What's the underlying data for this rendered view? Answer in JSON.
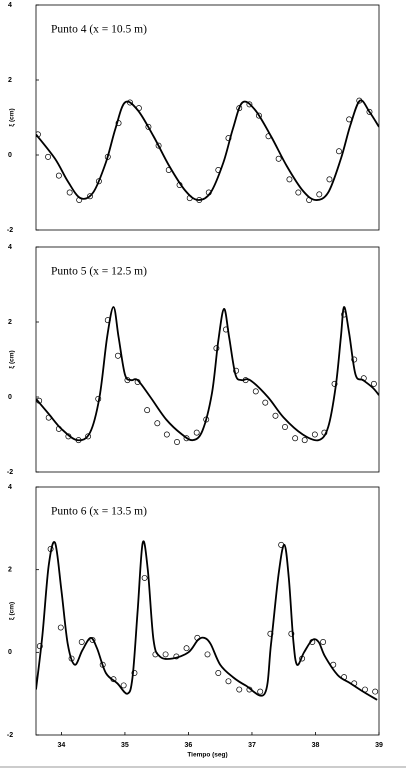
{
  "chart_data": [
    {
      "type": "line",
      "title": "Punto 4 (x = 10.5 m)",
      "ylabel": "ξ (cm)",
      "xlim": [
        33.6,
        39
      ],
      "ylim": [
        -2,
        4
      ],
      "yticks": [
        -2,
        0,
        2,
        4
      ],
      "series": [
        {
          "type": "line",
          "color": "#000000",
          "x": [
            33.6,
            33.9,
            34.1,
            34.3,
            34.5,
            34.7,
            34.85,
            35.0,
            35.2,
            35.45,
            35.7,
            35.95,
            36.15,
            36.35,
            36.55,
            36.7,
            36.85,
            37.05,
            37.3,
            37.55,
            37.8,
            38.0,
            38.2,
            38.4,
            38.55,
            38.7,
            38.85,
            39.0
          ],
          "values": [
            0.55,
            -0.1,
            -0.7,
            -1.15,
            -1.0,
            -0.2,
            0.7,
            1.4,
            1.2,
            0.5,
            -0.3,
            -0.95,
            -1.2,
            -1.0,
            -0.2,
            0.7,
            1.4,
            1.2,
            0.5,
            -0.3,
            -0.95,
            -1.2,
            -1.0,
            -0.1,
            0.8,
            1.45,
            1.15,
            0.75
          ]
        },
        {
          "type": "scatter",
          "color": "#000000",
          "x": [
            33.63,
            33.79,
            33.96,
            34.13,
            34.28,
            34.45,
            34.59,
            34.73,
            34.9,
            35.08,
            35.22,
            35.37,
            35.53,
            35.69,
            35.86,
            36.02,
            36.17,
            36.32,
            36.47,
            36.63,
            36.8,
            36.96,
            37.11,
            37.26,
            37.42,
            37.59,
            37.73,
            37.9,
            38.06,
            38.22,
            38.37,
            38.53,
            38.69,
            38.85
          ],
          "values": [
            0.55,
            -0.05,
            -0.55,
            -1.0,
            -1.2,
            -1.1,
            -0.7,
            -0.05,
            0.85,
            1.4,
            1.25,
            0.75,
            0.25,
            -0.4,
            -0.8,
            -1.15,
            -1.2,
            -1.0,
            -0.4,
            0.45,
            1.25,
            1.35,
            1.05,
            0.5,
            -0.1,
            -0.65,
            -1.0,
            -1.2,
            -1.05,
            -0.65,
            0.1,
            0.95,
            1.45,
            1.15
          ]
        }
      ]
    },
    {
      "type": "line",
      "title": "Punto 5 (x = 12.5 m)",
      "ylabel": "ξ (cm)",
      "xlim": [
        33.6,
        39
      ],
      "ylim": [
        -2,
        4
      ],
      "yticks": [
        -2,
        0,
        2,
        4
      ],
      "series": [
        {
          "type": "line",
          "color": "#000000",
          "x": [
            33.6,
            33.8,
            34.0,
            34.25,
            34.45,
            34.6,
            34.72,
            34.82,
            34.9,
            35.0,
            35.1,
            35.2,
            35.4,
            35.65,
            35.9,
            36.07,
            36.22,
            36.37,
            36.47,
            36.56,
            36.64,
            36.74,
            36.84,
            36.97,
            37.25,
            37.5,
            37.8,
            38.05,
            38.2,
            38.32,
            38.4,
            38.45,
            38.53,
            38.63,
            38.75,
            38.9,
            39.0
          ],
          "values": [
            -0.05,
            -0.45,
            -0.85,
            -1.15,
            -0.95,
            0.0,
            1.6,
            2.4,
            1.6,
            0.6,
            0.45,
            0.45,
            0.0,
            -0.6,
            -1.0,
            -1.15,
            -0.9,
            0.1,
            1.5,
            2.35,
            1.6,
            0.6,
            0.45,
            0.45,
            0.0,
            -0.55,
            -1.0,
            -1.15,
            -0.8,
            0.3,
            1.6,
            2.4,
            1.7,
            0.6,
            0.45,
            0.25,
            0.05
          ]
        },
        {
          "type": "scatter",
          "color": "#000000",
          "x": [
            33.65,
            33.8,
            33.96,
            34.11,
            34.27,
            34.42,
            34.58,
            34.73,
            34.89,
            35.04,
            35.2,
            35.35,
            35.51,
            35.66,
            35.82,
            35.97,
            36.13,
            36.28,
            36.44,
            36.59,
            36.75,
            36.9,
            37.06,
            37.21,
            37.37,
            37.52,
            37.68,
            37.83,
            37.99,
            38.14,
            38.3,
            38.45,
            38.61,
            38.76,
            38.92
          ],
          "values": [
            -0.1,
            -0.55,
            -0.85,
            -1.05,
            -1.15,
            -1.05,
            -0.05,
            2.05,
            1.1,
            0.45,
            0.4,
            -0.35,
            -0.7,
            -1.0,
            -1.2,
            -1.1,
            -0.95,
            -0.6,
            1.3,
            1.8,
            0.7,
            0.45,
            0.15,
            -0.15,
            -0.5,
            -0.8,
            -1.1,
            -1.15,
            -1.0,
            -0.95,
            0.35,
            2.2,
            1.0,
            0.5,
            0.35
          ]
        }
      ]
    },
    {
      "type": "line",
      "title": "Punto 6 (x = 13.5 m)",
      "ylabel": "ξ (cm)",
      "xlabel": "Tiempo (seg)",
      "xlim": [
        33.6,
        39
      ],
      "xticks": [
        34,
        35,
        36,
        37,
        38,
        39
      ],
      "ylim": [
        -2,
        4
      ],
      "yticks": [
        -2,
        0,
        2,
        4
      ],
      "series": [
        {
          "type": "line",
          "color": "#000000",
          "x": [
            33.6,
            33.7,
            33.8,
            33.9,
            34.0,
            34.1,
            34.21,
            34.33,
            34.46,
            34.56,
            34.7,
            34.88,
            35.04,
            35.12,
            35.2,
            35.28,
            35.36,
            35.45,
            35.55,
            35.75,
            36.0,
            36.15,
            36.25,
            36.35,
            36.5,
            36.7,
            36.9,
            37.2,
            37.3,
            37.42,
            37.51,
            37.58,
            37.65,
            37.71,
            37.82,
            37.95,
            38.05,
            38.15,
            38.35,
            38.55,
            38.75,
            38.97
          ],
          "values": [
            -0.9,
            0.4,
            2.1,
            2.65,
            1.5,
            0.2,
            -0.3,
            0.05,
            0.35,
            0.1,
            -0.5,
            -0.75,
            -1.0,
            -0.6,
            1.0,
            2.65,
            2.0,
            0.3,
            -0.1,
            -0.15,
            0.0,
            0.3,
            0.35,
            0.2,
            -0.3,
            -0.6,
            -0.8,
            -1.0,
            0.2,
            1.9,
            2.6,
            1.8,
            0.3,
            -0.3,
            0.0,
            0.3,
            0.25,
            -0.1,
            -0.55,
            -0.75,
            -0.95,
            -1.15
          ]
        },
        {
          "type": "scatter",
          "color": "#000000",
          "x": [
            33.66,
            33.83,
            33.99,
            34.16,
            34.32,
            34.49,
            34.65,
            34.82,
            34.98,
            35.15,
            35.31,
            35.48,
            35.64,
            35.81,
            35.97,
            36.14,
            36.3,
            36.47,
            36.63,
            36.8,
            36.96,
            37.13,
            37.29,
            37.46,
            37.62,
            37.79,
            37.95,
            38.12,
            38.28,
            38.45,
            38.61,
            38.78,
            38.94
          ],
          "values": [
            0.15,
            2.5,
            0.6,
            -0.15,
            0.25,
            0.3,
            -0.3,
            -0.65,
            -0.8,
            -0.5,
            1.8,
            -0.05,
            -0.05,
            -0.1,
            0.1,
            0.35,
            -0.05,
            -0.5,
            -0.7,
            -0.9,
            -0.9,
            -0.95,
            0.45,
            2.6,
            0.45,
            -0.15,
            0.25,
            0.25,
            -0.3,
            -0.6,
            -0.75,
            -0.9,
            -0.95
          ]
        }
      ]
    }
  ]
}
